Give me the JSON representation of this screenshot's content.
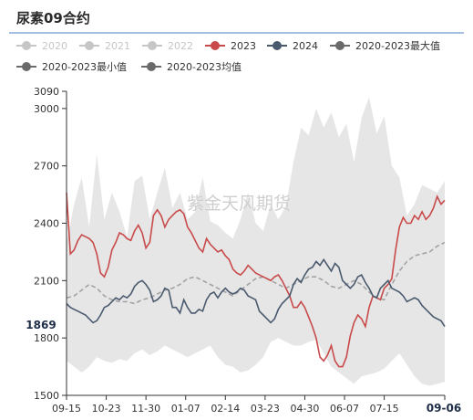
{
  "title": "尿素09合约",
  "watermark": "紫金天风期货",
  "colors": {
    "header_line": "#4a7fc0",
    "band": "#e6e6e6",
    "avg": "#a3a3a3",
    "s2023": "#c94a4a",
    "s2024": "#4a5a6e",
    "inactive": "#c6c6c6",
    "minmax_marker": "#6a6a6a",
    "axis": "#333333",
    "label_bg": "#ffffff",
    "label_text": "#1e2d48"
  },
  "legend": [
    {
      "label": "2020",
      "active": false,
      "icon": "circle-line-icon"
    },
    {
      "label": "2021",
      "active": false,
      "icon": "circle-line-icon"
    },
    {
      "label": "2022",
      "active": false,
      "icon": "circle-line-icon"
    },
    {
      "label": "2023",
      "active": true,
      "color_key": "s2023",
      "icon": "circle-line-icon"
    },
    {
      "label": "2024",
      "active": true,
      "color_key": "s2024",
      "icon": "circle-line-icon"
    },
    {
      "label": "2020-2023最大值",
      "active": true,
      "color_key": "minmax_marker",
      "icon": "circle-line-icon"
    },
    {
      "label": "2020-2023最小值",
      "active": true,
      "color_key": "minmax_marker",
      "icon": "circle-line-icon"
    },
    {
      "label": "2020-2023均值",
      "active": true,
      "color_key": "minmax_marker",
      "icon": "circle-line-icon"
    }
  ],
  "chart_data": {
    "type": "line",
    "title": "尿素09合约",
    "x_ticks": [
      "09-15",
      "10-23",
      "11-30",
      "01-07",
      "02-14",
      "03-23",
      "04-30",
      "06-07",
      "07-15"
    ],
    "x_end_label": "09-06",
    "ylim": [
      1500,
      3090
    ],
    "y_ticks": [
      1500,
      1800,
      2100,
      2400,
      2700,
      3000,
      3090
    ],
    "current_value_label": 1869,
    "x_range_index": [
      0,
      100
    ],
    "x_tick_index": [
      0,
      10.5,
      21,
      31.5,
      42,
      52.5,
      63,
      73.5,
      84
    ],
    "series": [
      {
        "name": "2020-2023最大值",
        "role": "max",
        "x": [
          0,
          2,
          4,
          6,
          8,
          10,
          12,
          14,
          16,
          18,
          20,
          22,
          24,
          26,
          28,
          30,
          32,
          34,
          36,
          38,
          40,
          42,
          44,
          46,
          48,
          50,
          52,
          54,
          56,
          58,
          60,
          62,
          64,
          66,
          68,
          70,
          72,
          74,
          76,
          78,
          80,
          82,
          84,
          86,
          88,
          90,
          92,
          94,
          96,
          98,
          100
        ],
        "values": [
          2300,
          2500,
          2640,
          2380,
          2760,
          2420,
          2560,
          2460,
          2330,
          2620,
          2650,
          2420,
          2560,
          2690,
          2480,
          2560,
          2420,
          2460,
          2640,
          2410,
          2390,
          2350,
          2320,
          2420,
          2560,
          2400,
          2360,
          2500,
          2420,
          2490,
          2720,
          2900,
          2860,
          3000,
          2900,
          2980,
          2850,
          2920,
          2720,
          2950,
          3060,
          2870,
          2960,
          2700,
          2640,
          2440,
          2500,
          2600,
          2580,
          2560,
          2620
        ]
      },
      {
        "name": "2020-2023最小值",
        "role": "min",
        "x": [
          0,
          2,
          4,
          6,
          8,
          10,
          12,
          14,
          16,
          18,
          20,
          22,
          24,
          26,
          28,
          30,
          32,
          34,
          36,
          38,
          40,
          42,
          44,
          46,
          48,
          50,
          52,
          54,
          56,
          58,
          60,
          62,
          64,
          66,
          68,
          70,
          72,
          74,
          76,
          78,
          80,
          82,
          84,
          86,
          88,
          90,
          92,
          94,
          96,
          98,
          100
        ],
        "values": [
          1680,
          1650,
          1620,
          1650,
          1700,
          1680,
          1670,
          1690,
          1680,
          1720,
          1740,
          1710,
          1730,
          1760,
          1740,
          1720,
          1700,
          1720,
          1740,
          1760,
          1700,
          1660,
          1650,
          1620,
          1630,
          1660,
          1700,
          1780,
          1800,
          1780,
          1760,
          1760,
          1780,
          1790,
          1720,
          1650,
          1620,
          1590,
          1560,
          1600,
          1610,
          1620,
          1640,
          1680,
          1720,
          1660,
          1600,
          1560,
          1550,
          1560,
          1570
        ]
      },
      {
        "name": "2020-2023均值",
        "role": "avg",
        "x": [
          0,
          2,
          4,
          6,
          8,
          10,
          12,
          14,
          16,
          18,
          20,
          22,
          24,
          26,
          28,
          30,
          32,
          34,
          36,
          38,
          40,
          42,
          44,
          46,
          48,
          50,
          52,
          54,
          56,
          58,
          60,
          62,
          64,
          66,
          68,
          70,
          72,
          74,
          76,
          78,
          80,
          82,
          84,
          86,
          88,
          90,
          92,
          94,
          96,
          98,
          100
        ],
        "values": [
          2010,
          2020,
          2050,
          2080,
          2060,
          2020,
          2000,
          1990,
          1990,
          1980,
          2000,
          2010,
          2030,
          2050,
          2060,
          2080,
          2110,
          2120,
          2100,
          2080,
          2060,
          2040,
          2020,
          2050,
          2080,
          2110,
          2120,
          2100,
          2080,
          2060,
          2080,
          2100,
          2120,
          2120,
          2100,
          2070,
          2060,
          2080,
          2100,
          2080,
          2040,
          2010,
          2000,
          2080,
          2150,
          2200,
          2230,
          2240,
          2250,
          2280,
          2300
        ]
      },
      {
        "name": "2023",
        "role": "s2023",
        "x": [
          0,
          1,
          2,
          3,
          4,
          5,
          6,
          7,
          8,
          9,
          10,
          11,
          12,
          13,
          14,
          15,
          16,
          17,
          18,
          19,
          20,
          21,
          22,
          23,
          24,
          25,
          26,
          27,
          28,
          29,
          30,
          31,
          32,
          33,
          34,
          35,
          36,
          37,
          38,
          39,
          40,
          41,
          42,
          43,
          44,
          45,
          46,
          47,
          48,
          49,
          50,
          51,
          52,
          53,
          54,
          55,
          56,
          57,
          58,
          59,
          60,
          61,
          62,
          63,
          64,
          65,
          66,
          67,
          68,
          69,
          70,
          71,
          72,
          73,
          74,
          75,
          76,
          77,
          78,
          79,
          80,
          81,
          82,
          83,
          84,
          85,
          86,
          87,
          88,
          89,
          90,
          91,
          92,
          93,
          94,
          95,
          96,
          97,
          98,
          99,
          100
        ],
        "values": [
          2560,
          2240,
          2260,
          2310,
          2340,
          2330,
          2320,
          2300,
          2240,
          2140,
          2120,
          2170,
          2260,
          2300,
          2350,
          2340,
          2320,
          2310,
          2360,
          2390,
          2350,
          2270,
          2300,
          2440,
          2470,
          2440,
          2380,
          2420,
          2440,
          2460,
          2470,
          2450,
          2380,
          2350,
          2310,
          2270,
          2250,
          2320,
          2290,
          2270,
          2250,
          2260,
          2230,
          2210,
          2160,
          2140,
          2130,
          2150,
          2180,
          2160,
          2140,
          2130,
          2120,
          2110,
          2100,
          2120,
          2130,
          2100,
          2060,
          2020,
          1960,
          1960,
          1990,
          1960,
          1910,
          1860,
          1800,
          1700,
          1680,
          1710,
          1760,
          1680,
          1650,
          1650,
          1700,
          1810,
          1880,
          1920,
          1900,
          1860,
          1960,
          2020,
          2010,
          2000,
          2060,
          2080,
          2110,
          2260,
          2380,
          2430,
          2400,
          2400,
          2440,
          2420,
          2460,
          2420,
          2440,
          2480,
          2540,
          2500,
          2520
        ]
      },
      {
        "name": "2024",
        "role": "s2024",
        "x": [
          0,
          1,
          2,
          3,
          4,
          5,
          6,
          7,
          8,
          9,
          10,
          11,
          12,
          13,
          14,
          15,
          16,
          17,
          18,
          19,
          20,
          21,
          22,
          23,
          24,
          25,
          26,
          27,
          28,
          29,
          30,
          31,
          32,
          33,
          34,
          35,
          36,
          37,
          38,
          39,
          40,
          41,
          42,
          43,
          44,
          45,
          46,
          47,
          48,
          49,
          50,
          51,
          52,
          53,
          54,
          55,
          56,
          57,
          58,
          59,
          60,
          61,
          62,
          63,
          64,
          65,
          66,
          67,
          68,
          69,
          70,
          71,
          72,
          73,
          74,
          75,
          76,
          77,
          78,
          79,
          80,
          81,
          82,
          83,
          84,
          85,
          86,
          87,
          88,
          89,
          90,
          91,
          92,
          93,
          94,
          95,
          96,
          97,
          98,
          99,
          100
        ],
        "values": [
          1980,
          1960,
          1950,
          1940,
          1930,
          1920,
          1900,
          1880,
          1890,
          1920,
          1960,
          1970,
          1990,
          2010,
          2000,
          2020,
          2010,
          2030,
          2070,
          2090,
          2100,
          2080,
          2050,
          1990,
          2000,
          2020,
          2060,
          2050,
          1960,
          1960,
          1930,
          2000,
          1960,
          1930,
          1930,
          1950,
          1940,
          2000,
          2030,
          2040,
          2010,
          2040,
          2060,
          2040,
          2030,
          2040,
          2060,
          2050,
          2020,
          2010,
          2000,
          1940,
          1920,
          1900,
          1880,
          1900,
          1950,
          1980,
          2000,
          2020,
          2080,
          2110,
          2090,
          2130,
          2160,
          2170,
          2200,
          2180,
          2210,
          2180,
          2150,
          2190,
          2170,
          2100,
          2080,
          2060,
          2080,
          2120,
          2130,
          2090,
          2060,
          2020,
          2010,
          2060,
          2080,
          2100,
          2060,
          2050,
          2040,
          2020,
          1990,
          2000,
          2010,
          2000,
          1970,
          1950,
          1930,
          1910,
          1900,
          1890,
          1860
        ]
      }
    ]
  }
}
